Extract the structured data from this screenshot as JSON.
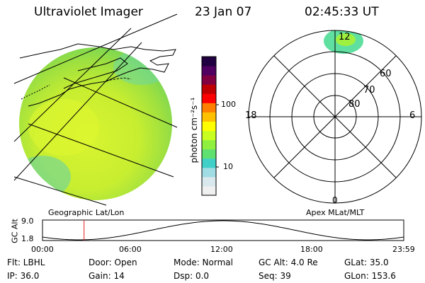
{
  "header": {
    "instrument": "Ultraviolet Imager",
    "date": "23 Jan 07",
    "time": "02:45:33 UT"
  },
  "colorbar": {
    "unit_label": "photon cm⁻²s⁻¹",
    "tick_100": "100",
    "tick_10": "10",
    "colors": [
      "#f0f0f0",
      "#d8e8ec",
      "#a0dce4",
      "#40d0c8",
      "#60e070",
      "#90f040",
      "#c8ff20",
      "#ffff00",
      "#ffc000",
      "#ff8000",
      "#ff0000",
      "#c00000",
      "#800040",
      "#500060",
      "#200040"
    ]
  },
  "polar_plot": {
    "mlt_top": "12",
    "mlt_left": "18",
    "mlt_right": "6",
    "mlt_bottom": "0",
    "lat_60": "60",
    "lat_70": "70",
    "lat_80": "80"
  },
  "labels": {
    "left_image": "Geographic Lat/Lon",
    "right_image": "Apex MLat/MLT"
  },
  "altitude_plot": {
    "ylabel": "GC Alt",
    "ymax": "9.0",
    "ymin": "1.8",
    "xticks": [
      "00:00",
      "06:00",
      "12:00",
      "18:00",
      "23:59"
    ],
    "current_marker_hours": 2.76
  },
  "status": {
    "filter": "Flt: LBHL",
    "ip": "IP: 36.0",
    "door": "Door: Open",
    "gain": "Gain: 14",
    "mode": "Mode: Normal",
    "dsp": "Dsp:    0.0",
    "gc_alt": "GC Alt: 4.0 Re",
    "seq": "Seq: 39",
    "glat": "GLat:  35.0",
    "glon": "GLon: 153.6"
  }
}
